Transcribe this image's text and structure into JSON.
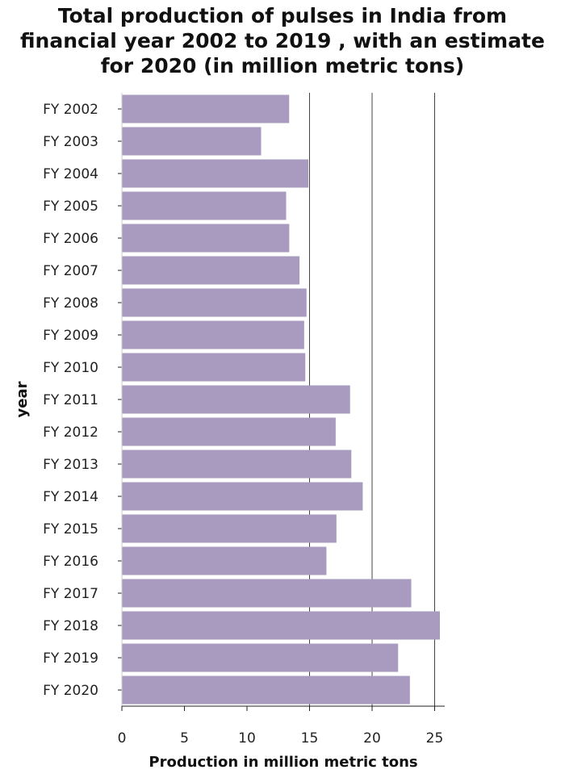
{
  "chart_data": {
    "type": "bar",
    "orientation": "horizontal",
    "title": "Total production of pulses in India from financial year 2002 to 2019 , with an estimate for 2020 (in million metric tons)",
    "xlabel": "Production in million metric tons",
    "ylabel": "year",
    "xlim": [
      0,
      26
    ],
    "xticks": [
      0,
      5,
      10,
      15,
      20,
      25
    ],
    "grid": "vertical lines at 15, 20, 25",
    "bar_color": "#a89bbf",
    "categories": [
      "FY 2002",
      "FY 2003",
      "FY 2004",
      "FY 2005",
      "FY 2006",
      "FY 2007",
      "FY 2008",
      "FY 2009",
      "FY 2010",
      "FY 2011",
      "FY 2012",
      "FY 2013",
      "FY 2014",
      "FY 2015",
      "FY 2016",
      "FY 2017",
      "FY 2018",
      "FY 2019",
      "FY 2020"
    ],
    "values": [
      13.37,
      11.13,
      14.91,
      13.13,
      13.38,
      14.2,
      14.76,
      14.57,
      14.66,
      18.24,
      17.09,
      18.34,
      19.25,
      17.15,
      16.35,
      23.13,
      25.42,
      22.08,
      23.02
    ]
  }
}
